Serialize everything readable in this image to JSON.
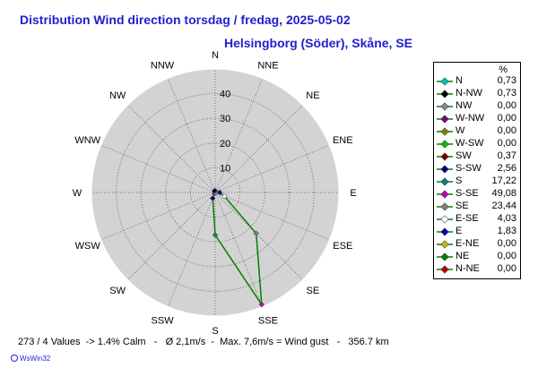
{
  "chart_data": {
    "type": "radar",
    "title": "Distribution Wind direction  torsdag / fredag, 2025-05-02",
    "subtitle": "Helsingborg (Söder), Skåne, SE",
    "directions": [
      "N",
      "NNE",
      "NE",
      "ENE",
      "E",
      "ESE",
      "SE",
      "SSE",
      "S",
      "SSW",
      "SW",
      "WSW",
      "W",
      "WNW",
      "NW",
      "NNW"
    ],
    "r_ticks": [
      "10",
      "20",
      "30",
      "40"
    ],
    "r_max": 50,
    "series": [
      {
        "values": [
          0.73,
          0.0,
          0.0,
          0.0,
          1.83,
          4.03,
          23.44,
          49.08,
          17.22,
          2.56,
          0.37,
          0.0,
          0.0,
          0.0,
          0.0,
          0.73
        ]
      }
    ],
    "legend": {
      "header": "%",
      "entries": [
        {
          "label": "N",
          "value": "0,73",
          "color": "#00c0c0"
        },
        {
          "label": "N-NW",
          "value": "0,73",
          "color": "#000000"
        },
        {
          "label": "NW",
          "value": "0,00",
          "color": "#888888"
        },
        {
          "label": "W-NW",
          "value": "0,00",
          "color": "#800080"
        },
        {
          "label": "W",
          "value": "0,00",
          "color": "#808000"
        },
        {
          "label": "W-SW",
          "value": "0,00",
          "color": "#00c000"
        },
        {
          "label": "SW",
          "value": "0,37",
          "color": "#800000"
        },
        {
          "label": "S-SW",
          "value": "2,56",
          "color": "#000080"
        },
        {
          "label": "S",
          "value": "17,22",
          "color": "#008080"
        },
        {
          "label": "S-SE",
          "value": "49,08",
          "color": "#c000c0"
        },
        {
          "label": "SE",
          "value": "23,44",
          "color": "#808080"
        },
        {
          "label": "E-SE",
          "value": "4,03",
          "color": "#ffffff"
        },
        {
          "label": "E",
          "value": "1,83",
          "color": "#0000c0"
        },
        {
          "label": "E-NE",
          "value": "0,00",
          "color": "#c0c000"
        },
        {
          "label": "NE",
          "value": "0,00",
          "color": "#008000"
        },
        {
          "label": "N-NE",
          "value": "0,00",
          "color": "#c00000"
        }
      ]
    },
    "line_color": "#008000",
    "disc_color": "#d3d3d3",
    "grid": true
  },
  "footer": "273 / 4 Values  -> 1.4% Calm   -   Ø 2,1m/s  -  Max. 7,6m/s = Wind gust   -   356.7 km",
  "credit": "WsWin32"
}
